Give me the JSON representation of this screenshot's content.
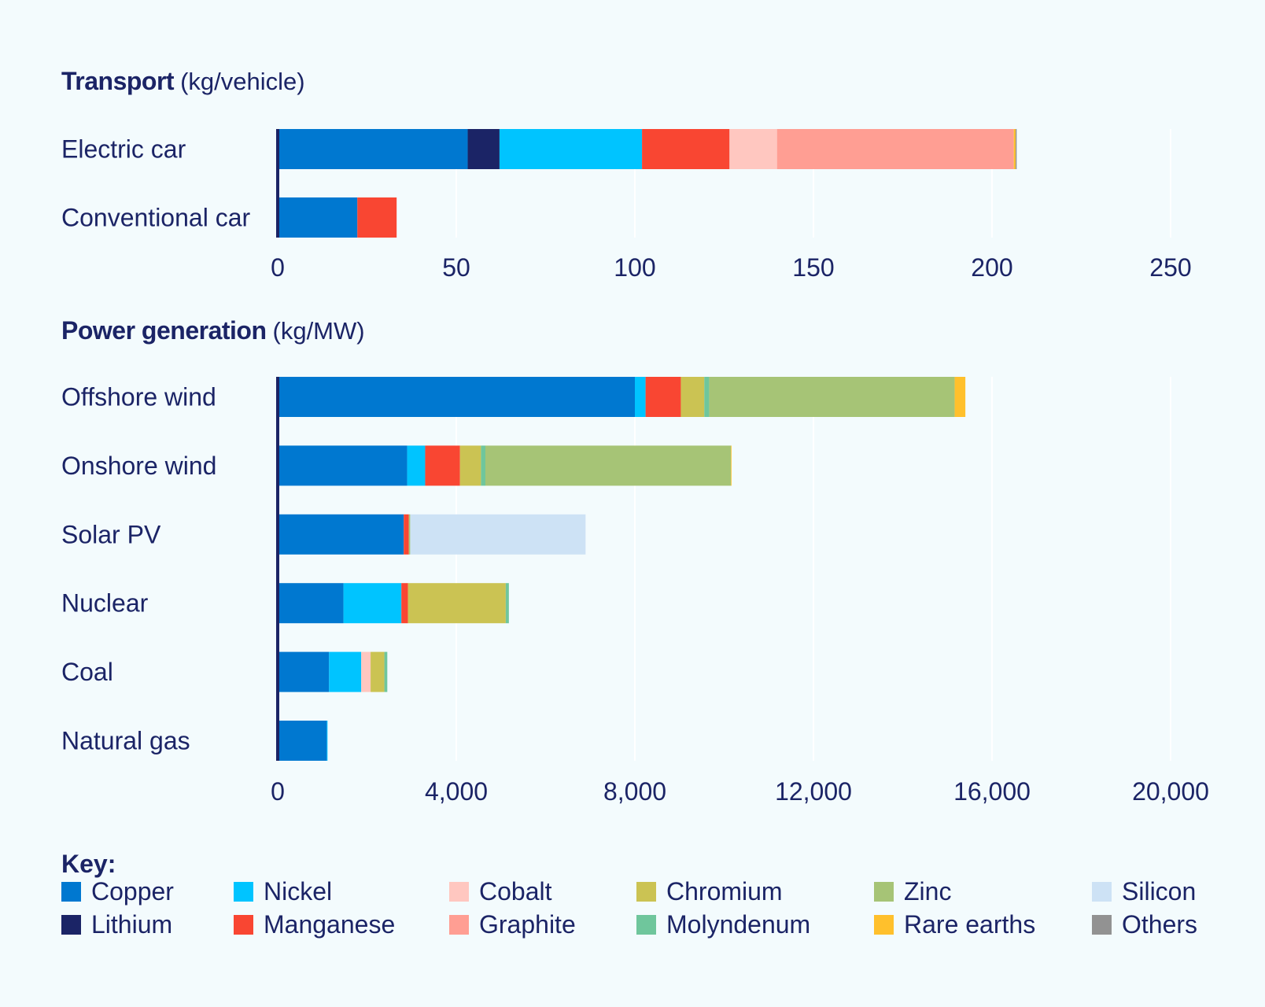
{
  "chart_data": [
    {
      "type": "bar",
      "orientation": "horizontal",
      "stacked": true,
      "title": "Transport",
      "unit": "(kg/vehicle)",
      "categories": [
        "Electric car",
        "Conventional car"
      ],
      "xlim": [
        0,
        250
      ],
      "ticks": [
        0,
        50,
        100,
        150,
        200,
        250
      ],
      "tick_labels": [
        "0",
        "50",
        "100",
        "150",
        "200",
        "250"
      ],
      "series": [
        {
          "name": "Copper",
          "values": [
            53.2,
            22.3
          ]
        },
        {
          "name": "Lithium",
          "values": [
            8.9,
            0
          ]
        },
        {
          "name": "Nickel",
          "values": [
            39.9,
            0
          ]
        },
        {
          "name": "Manganese",
          "values": [
            24.5,
            11
          ]
        },
        {
          "name": "Cobalt",
          "values": [
            13.3,
            0
          ]
        },
        {
          "name": "Graphite",
          "values": [
            66.3,
            0
          ]
        },
        {
          "name": "Rare earths",
          "values": [
            0.5,
            0
          ]
        },
        {
          "name": "Others",
          "values": [
            0.3,
            0
          ]
        }
      ]
    },
    {
      "type": "bar",
      "orientation": "horizontal",
      "stacked": true,
      "title": "Power generation",
      "unit": "(kg/MW)",
      "categories": [
        "Offshore wind",
        "Onshore wind",
        "Solar PV",
        "Nuclear",
        "Coal",
        "Natural gas"
      ],
      "xlim": [
        0,
        20000
      ],
      "ticks": [
        0,
        4000,
        8000,
        12000,
        16000,
        20000
      ],
      "tick_labels": [
        "0",
        "4,000",
        "8,000",
        "12,000",
        "16,000",
        "20,000"
      ],
      "series": [
        {
          "name": "Copper",
          "values": [
            8000,
            2900,
            2822,
            1473,
            1150,
            1100
          ]
        },
        {
          "name": "Nickel",
          "values": [
            240,
            403,
            1,
            1297,
            721,
            16
          ]
        },
        {
          "name": "Manganese",
          "values": [
            790,
            780,
            115,
            148,
            0,
            0
          ]
        },
        {
          "name": "Cobalt",
          "values": [
            0,
            0,
            0,
            0,
            210,
            0
          ]
        },
        {
          "name": "Chromium",
          "values": [
            525,
            470,
            0,
            2190,
            308,
            0
          ]
        },
        {
          "name": "Molyndenum",
          "values": [
            109,
            99,
            0,
            70,
            66,
            0
          ]
        },
        {
          "name": "Zinc",
          "values": [
            5500,
            5500,
            30,
            0,
            0,
            0
          ]
        },
        {
          "name": "Rare earths",
          "values": [
            239,
            14,
            0,
            0,
            0,
            0
          ]
        },
        {
          "name": "Silicon",
          "values": [
            0,
            0,
            3928,
            0,
            0,
            0
          ]
        },
        {
          "name": "Others",
          "values": [
            0,
            0,
            0,
            0,
            0,
            0
          ]
        }
      ]
    }
  ],
  "legend": {
    "title": "Key:",
    "items": [
      {
        "name": "Copper",
        "color": "#0078d0"
      },
      {
        "name": "Lithium",
        "color": "#1b2466"
      },
      {
        "name": "Nickel",
        "color": "#00c4ff"
      },
      {
        "name": "Manganese",
        "color": "#f94632"
      },
      {
        "name": "Cobalt",
        "color": "#ffc7c0"
      },
      {
        "name": "Graphite",
        "color": "#ff9e93"
      },
      {
        "name": "Chromium",
        "color": "#cbc353"
      },
      {
        "name": "Molyndenum",
        "color": "#6fc69c"
      },
      {
        "name": "Zinc",
        "color": "#a6c476"
      },
      {
        "name": "Rare earths",
        "color": "#ffc02c"
      },
      {
        "name": "Silicon",
        "color": "#cde2f5"
      },
      {
        "name": "Others",
        "color": "#929292"
      }
    ]
  }
}
